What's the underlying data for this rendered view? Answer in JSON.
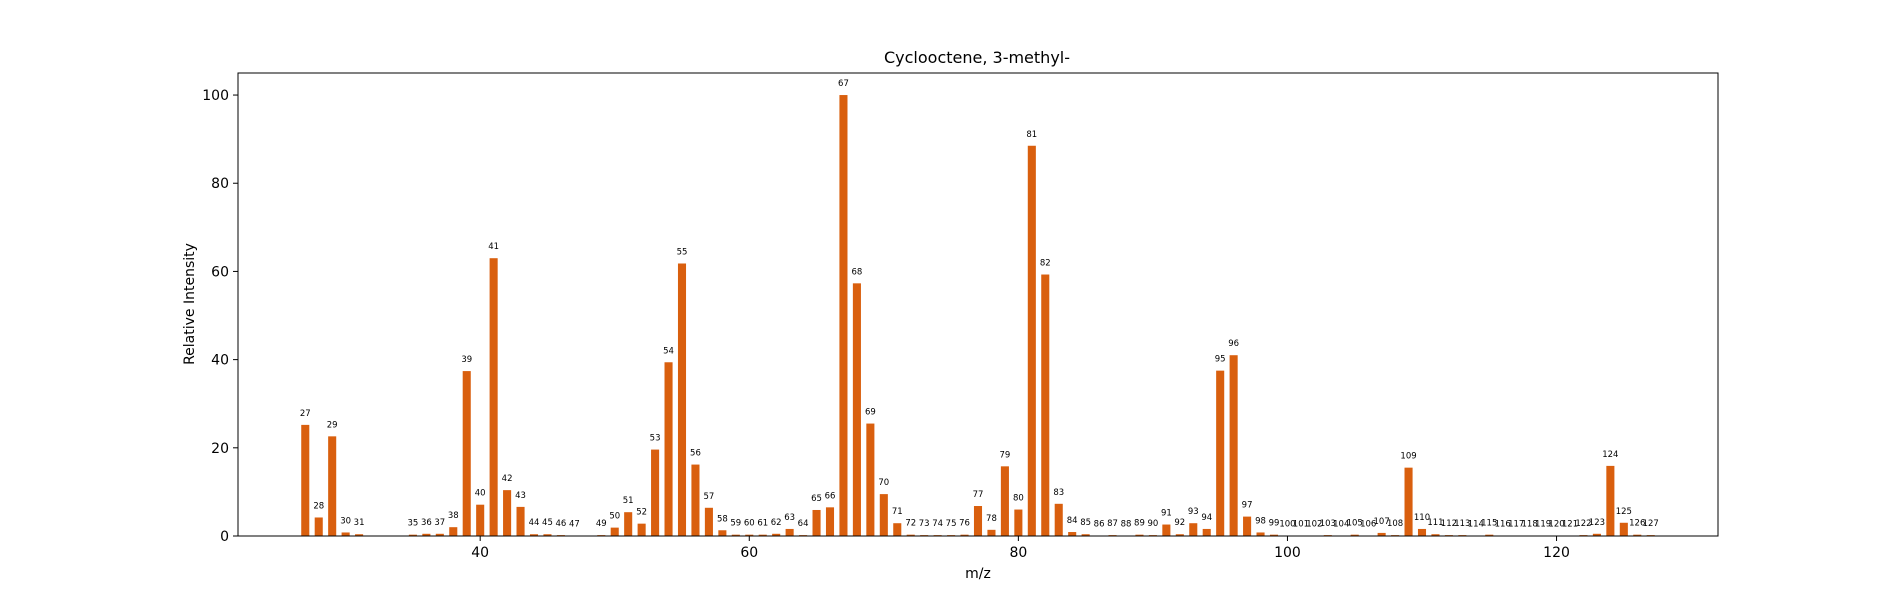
{
  "chart_data": {
    "type": "bar",
    "title": "Cyclooctene, 3-methyl-",
    "xlabel": "m/z",
    "ylabel": "Relative Intensity",
    "xlim": [
      22,
      132
    ],
    "ylim": [
      0,
      105
    ],
    "xticks": [
      40,
      60,
      80,
      100,
      120
    ],
    "yticks": [
      0,
      20,
      40,
      60,
      80,
      100
    ],
    "bar_color": "#d95f0e",
    "grid": false,
    "x": [
      27,
      28,
      29,
      30,
      31,
      35,
      36,
      37,
      38,
      39,
      40,
      41,
      42,
      43,
      44,
      45,
      46,
      47,
      49,
      50,
      51,
      52,
      53,
      54,
      55,
      56,
      57,
      58,
      59,
      60,
      61,
      62,
      63,
      64,
      65,
      66,
      67,
      68,
      69,
      70,
      71,
      72,
      73,
      74,
      75,
      76,
      77,
      78,
      79,
      80,
      81,
      82,
      83,
      84,
      85,
      86,
      87,
      88,
      89,
      90,
      91,
      92,
      93,
      94,
      95,
      96,
      97,
      98,
      99,
      100,
      101,
      102,
      103,
      104,
      105,
      106,
      107,
      108,
      109,
      110,
      111,
      112,
      113,
      114,
      115,
      116,
      117,
      118,
      119,
      120,
      121,
      122,
      123,
      124,
      125,
      126,
      127
    ],
    "values": [
      25.2,
      4.2,
      22.6,
      0.8,
      0.4,
      0.3,
      0.5,
      0.5,
      2.0,
      37.4,
      7.1,
      63.0,
      10.4,
      6.6,
      0.4,
      0.4,
      0.2,
      0.1,
      0.2,
      1.9,
      5.4,
      2.8,
      19.6,
      39.4,
      61.8,
      16.2,
      6.4,
      1.3,
      0.3,
      0.3,
      0.3,
      0.5,
      1.6,
      0.2,
      5.9,
      6.5,
      100,
      57.3,
      25.5,
      9.5,
      2.9,
      0.3,
      0.2,
      0.2,
      0.2,
      0.3,
      6.8,
      1.4,
      15.8,
      6.0,
      88.5,
      59.3,
      7.3,
      0.9,
      0.4,
      0.1,
      0.2,
      0.1,
      0.3,
      0.2,
      2.6,
      0.4,
      2.9,
      1.6,
      37.5,
      41.0,
      4.4,
      0.8,
      0.3,
      0.1,
      0.1,
      0.1,
      0.2,
      0.1,
      0.3,
      0.1,
      0.7,
      0.2,
      15.5,
      1.6,
      0.4,
      0.2,
      0.2,
      0.1,
      0.3,
      0.1,
      0.1,
      0.1,
      0.1,
      0.1,
      0.1,
      0.2,
      0.5,
      15.9,
      3.0,
      0.3,
      0.2
    ],
    "labels": [
      "27",
      "28",
      "29",
      "30",
      "31",
      "35",
      "36",
      "37",
      "38",
      "39",
      "40",
      "41",
      "42",
      "43",
      "44",
      "45",
      "46",
      "47",
      "49",
      "50",
      "51",
      "52",
      "53",
      "54",
      "55",
      "56",
      "57",
      "58",
      "59",
      "60",
      "61",
      "62",
      "63",
      "64",
      "65",
      "66",
      "67",
      "68",
      "69",
      "70",
      "71",
      "72",
      "73",
      "74",
      "75",
      "76",
      "77",
      "78",
      "79",
      "80",
      "81",
      "82",
      "83",
      "84",
      "85",
      "86",
      "87",
      "88",
      "89",
      "90",
      "91",
      "92",
      "93",
      "94",
      "95",
      "96",
      "97",
      "98",
      "99",
      "100",
      "101",
      "102",
      "103",
      "104",
      "105",
      "106",
      "107",
      "108",
      "109",
      "110",
      "111",
      "112",
      "113",
      "114",
      "115",
      "116",
      "117",
      "118",
      "119",
      "120",
      "121",
      "122",
      "123",
      "124",
      "125",
      "126",
      "127"
    ]
  }
}
